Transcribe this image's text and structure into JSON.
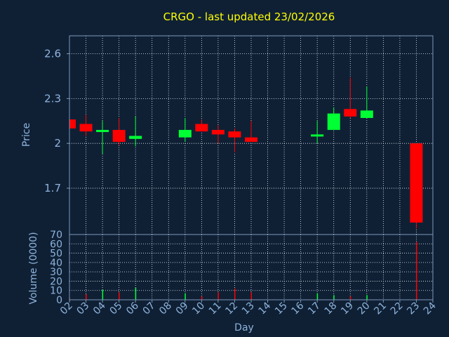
{
  "chart_data": {
    "type": "candlestick",
    "title": "CRGO - last updated 23/02/2026",
    "price_panel": {
      "ylabel": "Price",
      "yticks": [
        "2.6",
        "2.3",
        "2",
        "1.7"
      ],
      "ylim": [
        1.39,
        2.72
      ]
    },
    "volume_panel": {
      "ylabel": "Volume (0000)",
      "yticks": [
        "70",
        "60",
        "50",
        "40",
        "30",
        "20",
        "10",
        "0"
      ],
      "ylim": [
        0,
        70
      ]
    },
    "xlabel": "Day",
    "x_ticks": [
      "02",
      "03",
      "04",
      "05",
      "06",
      "07",
      "08",
      "09",
      "10",
      "11",
      "12",
      "13",
      "14",
      "15",
      "16",
      "17",
      "18",
      "19",
      "20",
      "21",
      "22",
      "23",
      "24"
    ],
    "colors": {
      "background": "#0f2035",
      "panel_border": "#7c98b8",
      "grid": "#e8eef5",
      "up": "#00ff33",
      "down": "#ff0000",
      "title": "#ffff00",
      "axis_text": "#8fb4dc"
    },
    "candles": [
      {
        "day": "02",
        "open": 2.16,
        "high": 2.16,
        "low": 2.1,
        "close": 2.1,
        "volume": 2
      },
      {
        "day": "03",
        "open": 2.13,
        "high": 2.19,
        "low": 2.05,
        "close": 2.08,
        "volume": 6
      },
      {
        "day": "04",
        "open": 2.08,
        "high": 2.15,
        "low": 1.93,
        "close": 2.09,
        "volume": 11
      },
      {
        "day": "05",
        "open": 2.09,
        "high": 2.17,
        "low": 1.99,
        "close": 2.01,
        "volume": 8
      },
      {
        "day": "06",
        "open": 2.03,
        "high": 2.18,
        "low": 1.98,
        "close": 2.05,
        "volume": 13
      },
      {
        "day": "09",
        "open": 2.04,
        "high": 2.17,
        "low": 2.01,
        "close": 2.09,
        "volume": 7
      },
      {
        "day": "10",
        "open": 2.13,
        "high": 2.16,
        "low": 2.08,
        "close": 2.08,
        "volume": 4
      },
      {
        "day": "11",
        "open": 2.09,
        "high": 2.12,
        "low": 2.0,
        "close": 2.06,
        "volume": 8
      },
      {
        "day": "12",
        "open": 2.08,
        "high": 2.1,
        "low": 1.94,
        "close": 2.04,
        "volume": 12
      },
      {
        "day": "13",
        "open": 2.04,
        "high": 2.15,
        "low": 2.01,
        "close": 2.01,
        "volume": 8
      },
      {
        "day": "17",
        "open": 2.05,
        "high": 2.15,
        "low": 2.0,
        "close": 2.06,
        "volume": 7
      },
      {
        "day": "18",
        "open": 2.09,
        "high": 2.24,
        "low": 2.09,
        "close": 2.2,
        "volume": 5
      },
      {
        "day": "19",
        "open": 2.23,
        "high": 2.44,
        "low": 2.17,
        "close": 2.18,
        "volume": 4
      },
      {
        "day": "20",
        "open": 2.17,
        "high": 2.38,
        "low": 2.17,
        "close": 2.22,
        "volume": 5
      },
      {
        "day": "23",
        "open": 2.0,
        "high": 2.0,
        "low": 1.43,
        "close": 1.47,
        "volume": 62
      }
    ]
  }
}
